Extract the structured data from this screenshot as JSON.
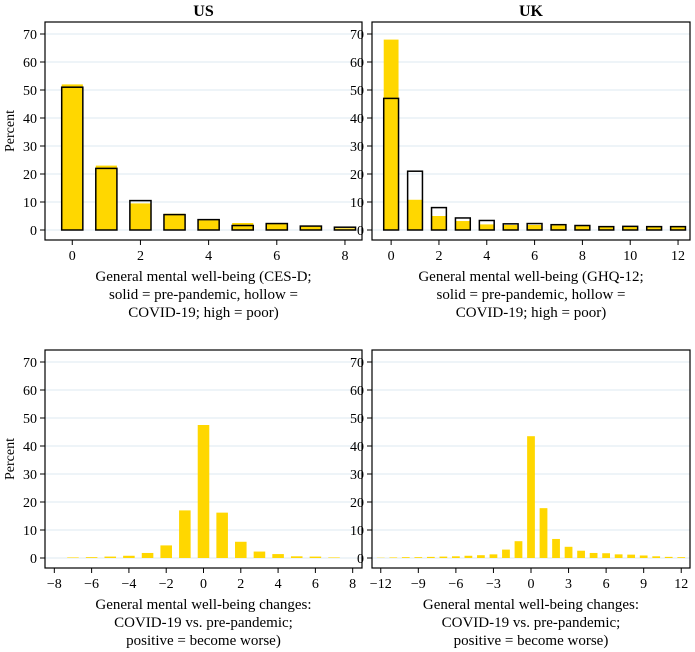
{
  "chart_data": [
    {
      "type": "bar",
      "title": "US",
      "ylabel": "Percent",
      "xlabel": [
        "General mental well-being (CES-D;",
        "solid = pre-pandemic, hollow =",
        "COVID-19; high = poor)"
      ],
      "ylim": [
        0,
        70
      ],
      "yticks": [
        0,
        10,
        20,
        30,
        40,
        50,
        60,
        70
      ],
      "xlim": [
        -0.8,
        8.5
      ],
      "xticks": [
        0,
        2,
        4,
        6,
        8
      ],
      "x": [
        0,
        1,
        2,
        3,
        4,
        5,
        6,
        7,
        8
      ],
      "series": [
        {
          "name": "pre-pandemic",
          "style": "solid",
          "values": [
            52,
            23,
            9.5,
            5.8,
            3.5,
            2.5,
            2.3,
            1.6,
            0.6
          ]
        },
        {
          "name": "COVID-19",
          "style": "hollow",
          "values": [
            51,
            22,
            10.5,
            5.5,
            3.7,
            1.6,
            2.3,
            1.4,
            1.0
          ]
        }
      ]
    },
    {
      "type": "bar",
      "title": "UK",
      "ylabel": "",
      "xlabel": [
        "General mental well-being (GHQ-12;",
        "solid = pre-pandemic, hollow =",
        "COVID-19; high = poor)"
      ],
      "ylim": [
        0,
        70
      ],
      "yticks": [
        0,
        10,
        20,
        30,
        40,
        50,
        60,
        70
      ],
      "xlim": [
        -0.8,
        12.5
      ],
      "xticks": [
        0,
        2,
        4,
        6,
        8,
        10,
        12
      ],
      "x": [
        0,
        1,
        2,
        3,
        4,
        5,
        6,
        7,
        8,
        9,
        10,
        11,
        12
      ],
      "series": [
        {
          "name": "pre-pandemic",
          "style": "solid",
          "values": [
            68,
            10.8,
            5.0,
            3.2,
            2.0,
            1.8,
            1.8,
            1.6,
            1.4,
            1.1,
            1.2,
            1.3,
            1.3
          ]
        },
        {
          "name": "COVID-19",
          "style": "hollow",
          "values": [
            47,
            21,
            8.0,
            4.3,
            3.4,
            2.2,
            2.3,
            1.9,
            1.6,
            1.2,
            1.3,
            1.2,
            1.2
          ]
        }
      ]
    },
    {
      "type": "bar",
      "title": "",
      "ylabel": "Percent",
      "xlabel": [
        "General mental well-being changes:",
        "COVID-19 vs. pre-pandemic;",
        "positive = become worse)"
      ],
      "ylim": [
        0,
        70
      ],
      "yticks": [
        0,
        10,
        20,
        30,
        40,
        50,
        60,
        70
      ],
      "xlim": [
        -8.5,
        8.5
      ],
      "xticks": [
        -8,
        -6,
        -4,
        -2,
        0,
        2,
        4,
        6,
        8
      ],
      "x": [
        -7,
        -6,
        -5,
        -4,
        -3,
        -2,
        -1,
        0,
        1,
        2,
        3,
        4,
        5,
        6,
        7
      ],
      "series": [
        {
          "name": "change",
          "style": "solid",
          "values": [
            0.2,
            0.3,
            0.5,
            0.8,
            1.8,
            4.5,
            17,
            47.5,
            16.2,
            5.8,
            2.3,
            1.4,
            0.6,
            0.5,
            0.2
          ]
        }
      ]
    },
    {
      "type": "bar",
      "title": "",
      "ylabel": "",
      "xlabel": [
        "General mental well-being changes:",
        "COVID-19 vs. pre-pandemic;",
        "positive = become worse)"
      ],
      "ylim": [
        0,
        70
      ],
      "yticks": [
        0,
        10,
        20,
        30,
        40,
        50,
        60,
        70
      ],
      "xlim": [
        -12.7,
        12.7
      ],
      "xticks": [
        -12,
        -9,
        -6,
        -3,
        0,
        3,
        6,
        9,
        12
      ],
      "x": [
        -12,
        -11,
        -10,
        -9,
        -8,
        -7,
        -6,
        -5,
        -4,
        -3,
        -2,
        -1,
        0,
        1,
        2,
        3,
        4,
        5,
        6,
        7,
        8,
        9,
        10,
        11,
        12
      ],
      "series": [
        {
          "name": "change",
          "style": "solid",
          "values": [
            0.1,
            0.2,
            0.3,
            0.3,
            0.4,
            0.5,
            0.6,
            0.8,
            1.0,
            1.3,
            3.0,
            6.0,
            43.5,
            17.8,
            6.8,
            4.0,
            2.6,
            1.8,
            1.7,
            1.3,
            1.2,
            0.9,
            0.6,
            0.4,
            0.3
          ]
        }
      ]
    }
  ],
  "colors": {
    "solid_fill": "#FFD700",
    "hollow_stroke": "#000000",
    "grid": "#DCE9F2",
    "axis": "#000000"
  }
}
